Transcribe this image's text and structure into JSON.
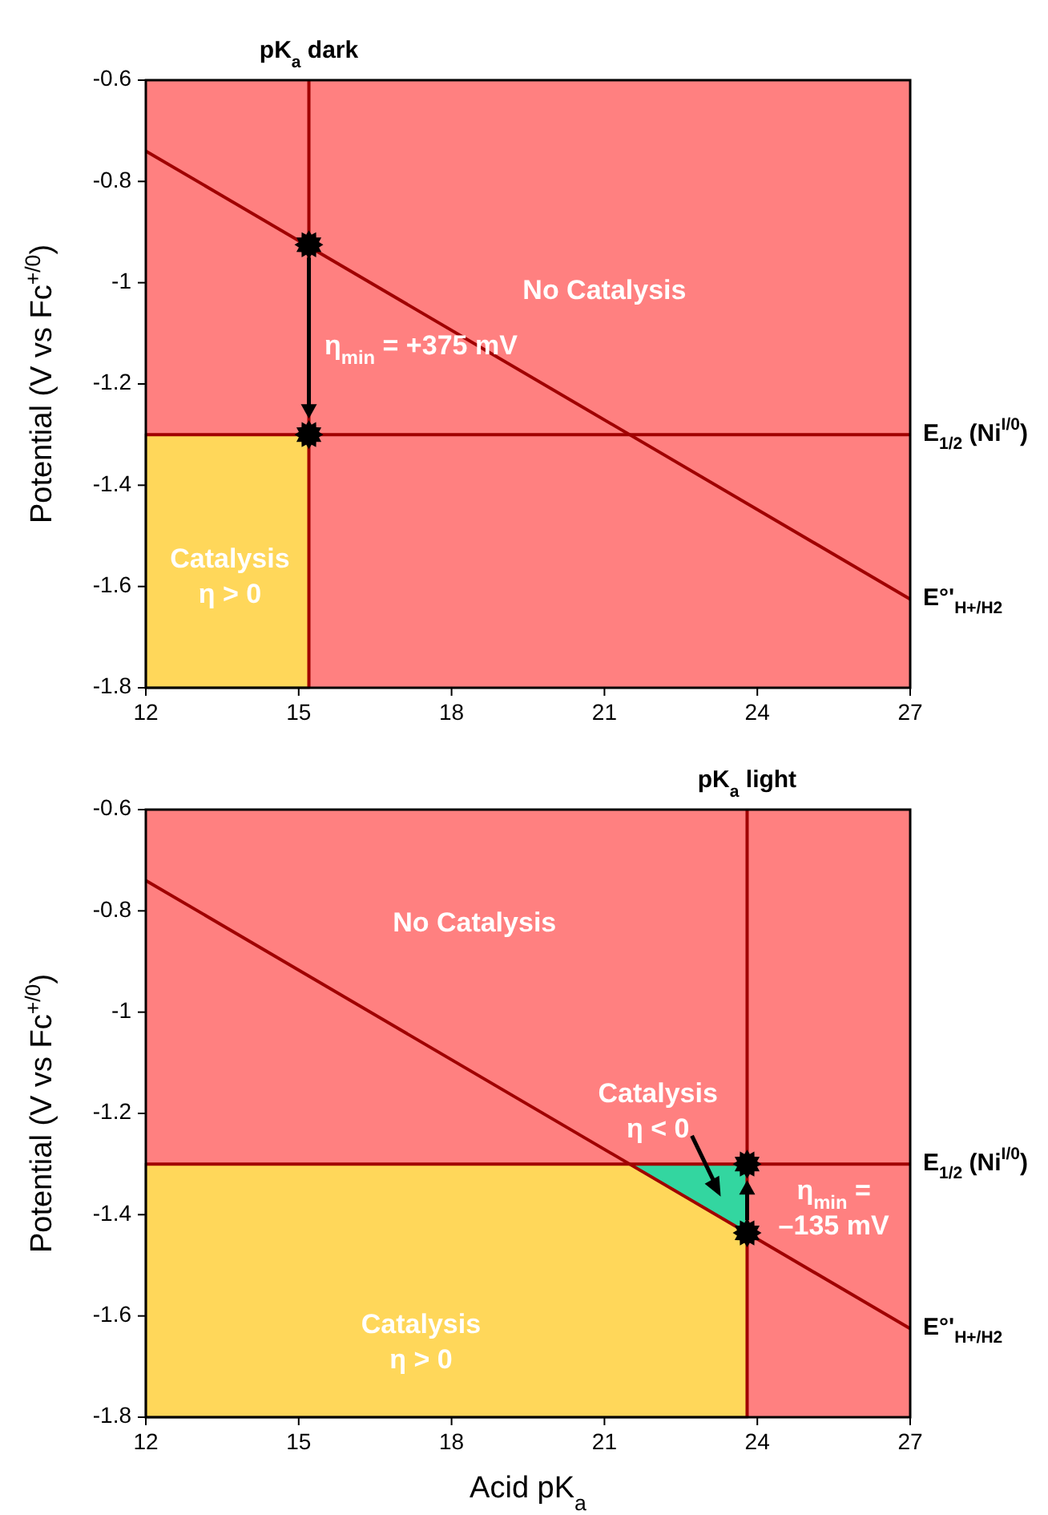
{
  "chart_data": [
    {
      "type": "line",
      "ylabel": "Potential (V vs Fc$^{+/0}$)",
      "xlim": [
        12,
        27
      ],
      "ylim": [
        -1.8,
        -0.6
      ],
      "xticks": [
        12,
        15,
        18,
        21,
        24,
        27
      ],
      "yticks": [
        -1.8,
        -1.6,
        -1.4,
        -1.2,
        -1,
        -0.8,
        -0.6
      ],
      "grid": false,
      "series": [
        {
          "type": "line",
          "name": "E°'$_{H+/H2}$",
          "color": "#a00000",
          "x": [
            12,
            27
          ],
          "values": [
            -0.74,
            -1.625
          ]
        },
        {
          "type": "scatter",
          "color": "#000000",
          "marker": "star",
          "x": [
            15.2,
            15.2
          ],
          "values": [
            -0.925,
            -1.3
          ]
        }
      ],
      "ref_lines": [
        {
          "axis": "y",
          "value": -1.3,
          "label": "E$_{1/2}$ (Ni$^{I/0}$)",
          "color": "#a00000"
        },
        {
          "axis": "x",
          "value": 15.2,
          "label": "pK$_{a}$ dark",
          "color": "#a00000"
        }
      ],
      "annotations": [
        "No Catalysis",
        "η$_{min}$ = +375 mV",
        "Catalysis\nη > 0"
      ]
    },
    {
      "type": "line",
      "xlabel": "Acid pK$_{a}$",
      "ylabel": "Potential (V vs Fc$^{+/0}$)",
      "xlim": [
        12,
        27
      ],
      "ylim": [
        -1.8,
        -0.6
      ],
      "xticks": [
        12,
        15,
        18,
        21,
        24,
        27
      ],
      "yticks": [
        -1.8,
        -1.6,
        -1.4,
        -1.2,
        -1,
        -0.8,
        -0.6
      ],
      "grid": false,
      "series": [
        {
          "type": "line",
          "name": "E°'$_{H+/H2}$",
          "color": "#a00000",
          "x": [
            12,
            27
          ],
          "values": [
            -0.74,
            -1.625
          ]
        },
        {
          "type": "scatter",
          "color": "#000000",
          "marker": "star",
          "x": [
            23.8,
            23.8
          ],
          "values": [
            -1.436,
            -1.3
          ]
        }
      ],
      "ref_lines": [
        {
          "axis": "y",
          "value": -1.3,
          "label": "E$_{1/2}$ (Ni$^{I/0}$)",
          "color": "#a00000"
        },
        {
          "axis": "x",
          "value": 23.8,
          "label": "pK$_{a}$ light",
          "color": "#a00000"
        }
      ],
      "annotations": [
        "No Catalysis",
        "Catalysis\nη < 0",
        "η$_{min}$ =\n–135 mV",
        "Catalysis\nη > 0"
      ]
    }
  ]
}
